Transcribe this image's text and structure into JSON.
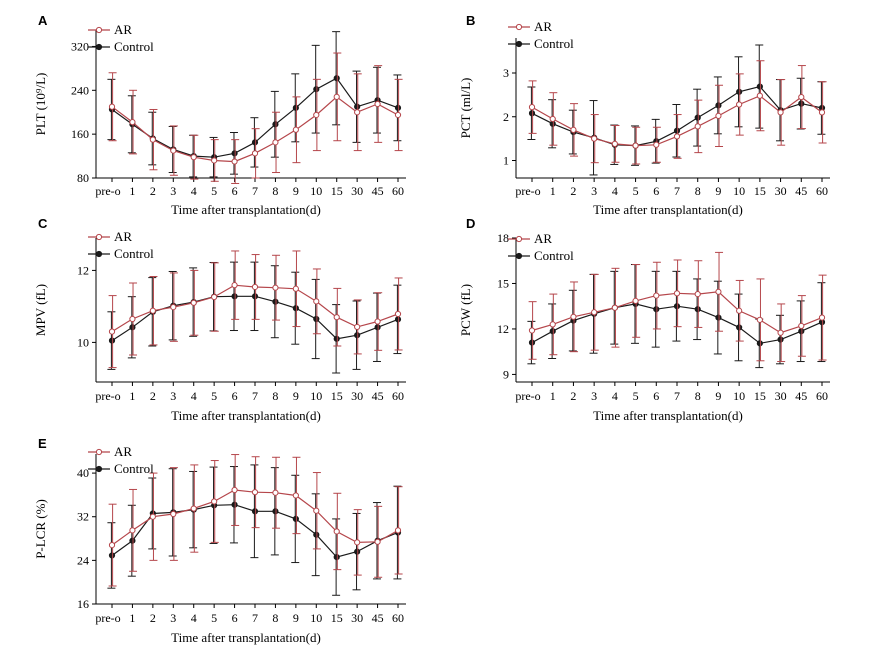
{
  "colors": {
    "AR": "#b5464b",
    "Control": "#1a1a1a"
  },
  "chart_data": [
    {
      "panel": "A",
      "type": "line",
      "xlabel": "Time after transplantation(d)",
      "ylabel": "PLT (10⁹/L)",
      "categories": [
        "pre-o",
        "1",
        "2",
        "3",
        "4",
        "5",
        "6",
        "7",
        "8",
        "9",
        "10",
        "15",
        "30",
        "45",
        "60"
      ],
      "yticks": [
        80,
        160,
        240,
        320
      ],
      "ylim": [
        80,
        350
      ],
      "series": [
        {
          "name": "AR",
          "values": [
            210,
            182,
            150,
            130,
            118,
            112,
            110,
            125,
            145,
            168,
            195,
            228,
            200,
            215,
            195
          ],
          "err": [
            62,
            58,
            55,
            45,
            40,
            38,
            40,
            45,
            55,
            60,
            65,
            80,
            70,
            70,
            65
          ]
        },
        {
          "name": "Control",
          "values": [
            205,
            178,
            152,
            132,
            120,
            118,
            125,
            145,
            178,
            208,
            242,
            262,
            210,
            222,
            208
          ],
          "err": [
            55,
            52,
            48,
            42,
            38,
            36,
            38,
            45,
            60,
            62,
            80,
            85,
            65,
            60,
            60
          ]
        }
      ]
    },
    {
      "panel": "B",
      "type": "line",
      "xlabel": "Time after transplantation(d)",
      "ylabel": "PCT (ml/L)",
      "categories": [
        "pre-o",
        "1",
        "2",
        "3",
        "4",
        "5",
        "6",
        "7",
        "8",
        "9",
        "10",
        "15",
        "30",
        "45",
        "60"
      ],
      "yticks": [
        1,
        2,
        3
      ],
      "ylim": [
        0.6,
        3.8
      ],
      "series": [
        {
          "name": "AR",
          "values": [
            2.22,
            1.95,
            1.7,
            1.5,
            1.38,
            1.34,
            1.36,
            1.55,
            1.78,
            2.02,
            2.28,
            2.48,
            2.1,
            2.45,
            2.1
          ],
          "err": [
            0.6,
            0.6,
            0.6,
            0.55,
            0.42,
            0.42,
            0.4,
            0.5,
            0.6,
            0.7,
            0.7,
            0.8,
            0.75,
            0.72,
            0.7
          ]
        },
        {
          "name": "Control",
          "values": [
            2.08,
            1.84,
            1.65,
            1.52,
            1.36,
            1.34,
            1.44,
            1.68,
            1.98,
            2.26,
            2.57,
            2.69,
            2.15,
            2.3,
            2.2
          ],
          "err": [
            0.6,
            0.55,
            0.5,
            0.85,
            0.45,
            0.45,
            0.5,
            0.6,
            0.65,
            0.65,
            0.8,
            0.95,
            0.7,
            0.58,
            0.6
          ]
        }
      ]
    },
    {
      "panel": "C",
      "type": "line",
      "xlabel": "Time after transplantation(d)",
      "ylabel": "MPV (fL)",
      "categories": [
        "pre-o",
        "1",
        "2",
        "3",
        "4",
        "5",
        "6",
        "7",
        "8",
        "9",
        "10",
        "15",
        "30",
        "45",
        "60"
      ],
      "yticks": [
        10,
        12
      ],
      "ylim": [
        8.9,
        12.9
      ],
      "series": [
        {
          "name": "AR",
          "values": [
            10.3,
            10.65,
            10.88,
            10.98,
            11.1,
            11.26,
            11.59,
            11.54,
            11.52,
            11.49,
            11.14,
            10.7,
            10.43,
            10.58,
            10.79
          ],
          "err": [
            1.0,
            1.0,
            0.95,
            0.95,
            0.9,
            0.95,
            0.95,
            0.9,
            0.9,
            1.05,
            0.9,
            0.8,
            0.75,
            0.8,
            1.0
          ]
        },
        {
          "name": "Control",
          "values": [
            10.05,
            10.42,
            10.85,
            11.02,
            11.12,
            11.27,
            11.28,
            11.28,
            11.13,
            10.95,
            10.65,
            10.1,
            10.2,
            10.42,
            10.64
          ],
          "err": [
            0.8,
            0.85,
            0.95,
            0.95,
            0.95,
            0.95,
            0.95,
            0.95,
            1.0,
            1.0,
            1.1,
            0.95,
            0.95,
            0.95,
            0.95
          ]
        }
      ]
    },
    {
      "panel": "D",
      "type": "line",
      "xlabel": "Time after transplantation(d)",
      "ylabel": "PCW (fL)",
      "categories": [
        "pre-o",
        "1",
        "2",
        "3",
        "4",
        "5",
        "6",
        "7",
        "8",
        "9",
        "10",
        "15",
        "30",
        "45",
        "60"
      ],
      "yticks": [
        9,
        12,
        15,
        18
      ],
      "ylim": [
        8.5,
        18
      ],
      "series": [
        {
          "name": "AR",
          "values": [
            11.9,
            12.3,
            12.8,
            13.1,
            13.4,
            13.85,
            14.2,
            14.35,
            14.3,
            14.45,
            13.2,
            12.6,
            11.75,
            12.2,
            12.75
          ],
          "err": [
            1.9,
            2.0,
            2.3,
            2.5,
            2.6,
            2.4,
            2.2,
            2.2,
            2.2,
            2.6,
            2.0,
            2.7,
            1.9,
            2.0,
            2.8
          ]
        },
        {
          "name": "Control",
          "values": [
            11.1,
            11.85,
            12.55,
            13.0,
            13.4,
            13.65,
            13.3,
            13.5,
            13.3,
            12.75,
            12.1,
            11.05,
            11.3,
            11.85,
            12.45
          ],
          "err": [
            1.4,
            1.8,
            2.0,
            2.6,
            2.4,
            2.6,
            2.5,
            2.3,
            2.0,
            2.4,
            2.2,
            1.6,
            1.6,
            2.0,
            2.6
          ]
        }
      ]
    },
    {
      "panel": "E",
      "type": "line",
      "xlabel": "Time after transplantation(d)",
      "ylabel": "P-LCR (%)",
      "categories": [
        "pre-o",
        "1",
        "2",
        "3",
        "4",
        "5",
        "6",
        "7",
        "8",
        "9",
        "10",
        "15",
        "30",
        "45",
        "60"
      ],
      "yticks": [
        16,
        24,
        32,
        40
      ],
      "ylim": [
        16,
        43.5
      ],
      "series": [
        {
          "name": "AR",
          "values": [
            26.8,
            29.5,
            32.0,
            32.5,
            33.5,
            34.8,
            36.9,
            36.5,
            36.4,
            35.9,
            33.1,
            29.3,
            27.3,
            27.4,
            29.5
          ],
          "err": [
            7.5,
            7.5,
            8.0,
            8.5,
            8.0,
            7.5,
            6.5,
            6.5,
            6.5,
            7.0,
            7.0,
            7.0,
            6.0,
            6.5,
            8.0
          ]
        },
        {
          "name": "Control",
          "values": [
            24.9,
            27.6,
            32.6,
            32.8,
            33.3,
            34.1,
            34.2,
            33.0,
            33.0,
            31.6,
            28.7,
            24.6,
            25.6,
            27.6,
            29.1
          ],
          "err": [
            6.0,
            6.5,
            6.5,
            8.0,
            7.0,
            7.0,
            7.0,
            8.5,
            8.0,
            8.0,
            7.5,
            7.0,
            7.0,
            7.0,
            8.5
          ]
        }
      ]
    }
  ]
}
